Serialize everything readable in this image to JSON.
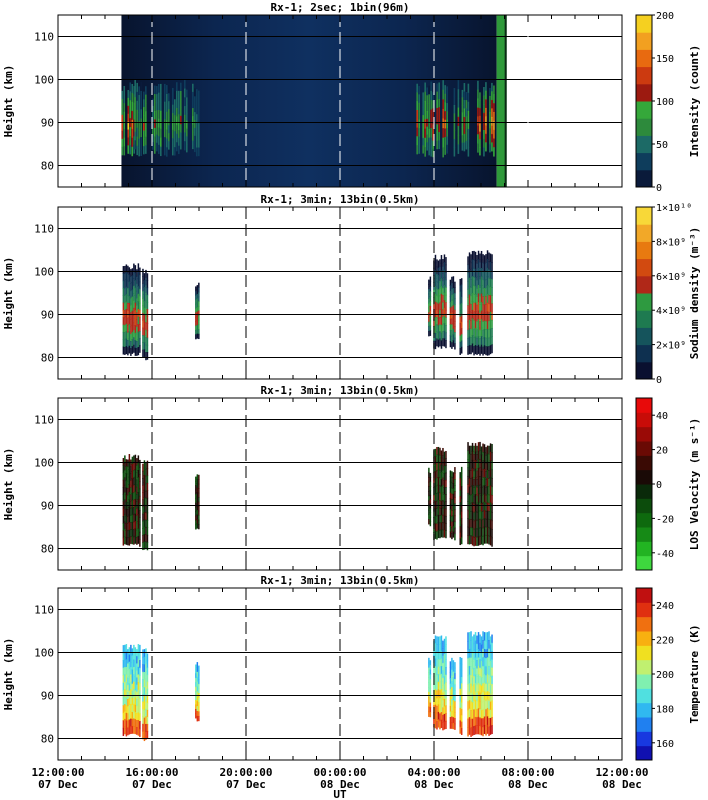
{
  "chart_data": [
    {
      "type": "heatmap",
      "title": "Rx-1;  2sec; 1bin(96m)",
      "ylabel": "Height (km)",
      "ylim": [
        75,
        115
      ],
      "yticks": [
        80,
        90,
        100,
        110
      ],
      "colorbar": {
        "label": "Intensity (count)",
        "range": [
          0,
          200
        ],
        "ticks": [
          "0",
          "50",
          "100",
          "150",
          "200"
        ],
        "colors": [
          "#0a1a3a",
          "#0e3d5c",
          "#1c6a66",
          "#2d8a3c",
          "#35a83a",
          "#9c1a10",
          "#cc3a10",
          "#e86a10",
          "#f2a020",
          "#f5d020"
        ]
      },
      "data_extents": [
        {
          "from": "14:42",
          "to": "15:15",
          "peak": 130
        },
        {
          "from": "15:15",
          "to": "15:32",
          "peak": 60
        },
        {
          "from": "15:32",
          "to": "15:45",
          "peak": 130
        },
        {
          "from": "16:00",
          "to": "18:00",
          "peak": 70
        },
        {
          "from": "03:15",
          "to": "04:35",
          "peak": 110
        },
        {
          "from": "04:50",
          "to": "05:30",
          "peak": 80
        },
        {
          "from": "05:45",
          "to": "06:40",
          "peak": 150
        }
      ]
    },
    {
      "type": "heatmap",
      "title": "Rx-1; 3min; 13bin(0.5km)",
      "ylabel": "Height (km)",
      "ylim": [
        75,
        115
      ],
      "yticks": [
        80,
        90,
        100,
        110
      ],
      "colorbar": {
        "label": "Sodium density (m⁻³)",
        "range": [
          0,
          10000000000.0
        ],
        "ticks": [
          "0",
          "2×10⁹",
          "4×10⁹",
          "6×10⁹",
          "8×10⁹",
          "1×10¹⁰"
        ],
        "colors": [
          "#0a1030",
          "#0e3050",
          "#15545c",
          "#1e7a50",
          "#2e9a40",
          "#b02818",
          "#d24a10",
          "#e87a10",
          "#f2a828",
          "#f8d838"
        ]
      },
      "data_extents": [
        {
          "from": "14:45",
          "to": "15:30",
          "bottom": 80.5,
          "top": 102
        },
        {
          "from": "15:35",
          "to": "15:50",
          "bottom": 79.5,
          "top": 101
        },
        {
          "from": "17:50",
          "to": "18:00",
          "bottom": 84,
          "top": 98
        },
        {
          "from": "03:45",
          "to": "03:48",
          "bottom": 85,
          "top": 99
        },
        {
          "from": "03:58",
          "to": "04:30",
          "bottom": 82,
          "top": 104
        },
        {
          "from": "04:40",
          "to": "04:52",
          "bottom": 82,
          "top": 99
        },
        {
          "from": "05:05",
          "to": "05:10",
          "bottom": 80.5,
          "top": 99
        },
        {
          "from": "05:25",
          "to": "06:30",
          "bottom": 80.5,
          "top": 105
        }
      ]
    },
    {
      "type": "heatmap",
      "title": "Rx-1; 3min; 13bin(0.5km)",
      "ylabel": "Height (km)",
      "ylim": [
        75,
        115
      ],
      "yticks": [
        80,
        90,
        100,
        110
      ],
      "colorbar": {
        "label": "LOS Velocity (m s⁻¹)",
        "range": [
          -50,
          50
        ],
        "ticks": [
          "-40",
          "-20",
          "0",
          "20",
          "40"
        ],
        "colors": [
          "#3ed83e",
          "#22b422",
          "#168a16",
          "#0e6a0e",
          "#0c4c0c",
          "#0a2a0a",
          "#1a0a06",
          "#3a0a04",
          "#6a0a04",
          "#9a0a06",
          "#c80c08",
          "#e80a0a"
        ]
      },
      "data_extents": [
        {
          "from": "14:45",
          "to": "15:30",
          "bottom": 80.5,
          "top": 102
        },
        {
          "from": "15:35",
          "to": "15:50",
          "bottom": 79.5,
          "top": 101
        },
        {
          "from": "17:50",
          "to": "18:00",
          "bottom": 84,
          "top": 98
        },
        {
          "from": "03:45",
          "to": "03:48",
          "bottom": 85,
          "top": 99
        },
        {
          "from": "03:58",
          "to": "04:30",
          "bottom": 82,
          "top": 104
        },
        {
          "from": "04:40",
          "to": "04:52",
          "bottom": 82,
          "top": 99
        },
        {
          "from": "05:05",
          "to": "05:10",
          "bottom": 80.5,
          "top": 99
        },
        {
          "from": "05:25",
          "to": "06:30",
          "bottom": 80.5,
          "top": 105
        }
      ]
    },
    {
      "type": "heatmap",
      "title": "Rx-1; 3min; 13bin(0.5km)",
      "ylabel": "Height (km)",
      "ylim": [
        75,
        115
      ],
      "yticks": [
        80,
        90,
        100,
        110
      ],
      "colorbar": {
        "label": "Temperature (K)",
        "range": [
          150,
          250
        ],
        "ticks": [
          "160",
          "180",
          "200",
          "220",
          "240"
        ],
        "colors": [
          "#1010b0",
          "#1838e0",
          "#2080f0",
          "#30b8f0",
          "#50e0e0",
          "#80f0b0",
          "#c0f070",
          "#f0e020",
          "#f8b010",
          "#f07010",
          "#e03010",
          "#c01010"
        ]
      },
      "data_extents": [
        {
          "from": "14:45",
          "to": "15:30",
          "bottom": 80.5,
          "top": 102
        },
        {
          "from": "15:35",
          "to": "15:50",
          "bottom": 79.5,
          "top": 101
        },
        {
          "from": "17:50",
          "to": "18:00",
          "bottom": 84,
          "top": 98
        },
        {
          "from": "03:45",
          "to": "03:48",
          "bottom": 85,
          "top": 99
        },
        {
          "from": "03:58",
          "to": "04:30",
          "bottom": 82,
          "top": 104
        },
        {
          "from": "04:40",
          "to": "04:52",
          "bottom": 82,
          "top": 99
        },
        {
          "from": "05:05",
          "to": "05:10",
          "bottom": 80.5,
          "top": 99
        },
        {
          "from": "05:25",
          "to": "06:30",
          "bottom": 80.5,
          "top": 105
        }
      ]
    }
  ],
  "xaxis": {
    "label": "UT",
    "range": [
      "2000-12-07 12:00:00",
      "2000-12-08 12:00:00"
    ],
    "ticks": [
      {
        "time": "12:00:00",
        "date": "07 Dec",
        "hours": 0
      },
      {
        "time": "16:00:00",
        "date": "07 Dec",
        "hours": 4
      },
      {
        "time": "20:00:00",
        "date": "07 Dec",
        "hours": 8
      },
      {
        "time": "00:00:00",
        "date": "08 Dec",
        "hours": 12
      },
      {
        "time": "04:00:00",
        "date": "08 Dec",
        "hours": 16
      },
      {
        "time": "08:00:00",
        "date": "08 Dec",
        "hours": 20
      },
      {
        "time": "12:00:00",
        "date": "08 Dec",
        "hours": 24
      }
    ]
  }
}
